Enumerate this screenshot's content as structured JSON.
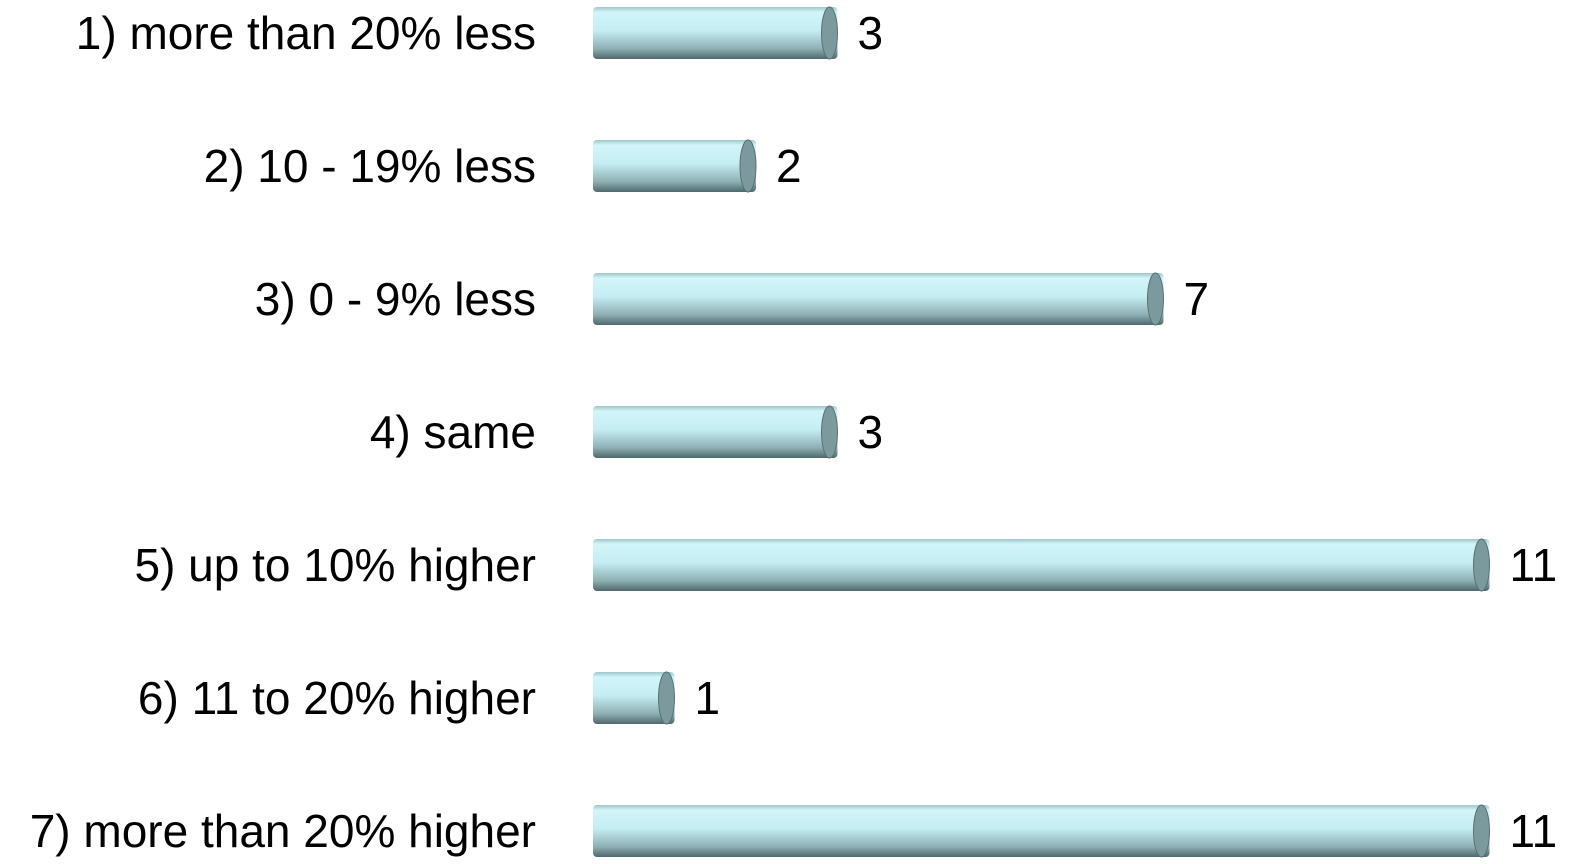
{
  "chart_data": {
    "type": "bar",
    "orientation": "horizontal",
    "categories": [
      "1) more than 20% less",
      "2) 10 - 19% less",
      "3) 0 - 9% less",
      "4) same",
      "5) up to 10% higher",
      "6) 11 to 20% higher",
      "7) more than 20% higher"
    ],
    "values": [
      3,
      2,
      7,
      3,
      11,
      1,
      11
    ],
    "value_labels": [
      "3",
      "2",
      "7",
      "3",
      "11",
      "1",
      "11"
    ],
    "title": "",
    "xlabel": "",
    "ylabel": "",
    "xlim": [
      0,
      11
    ],
    "grid": false,
    "legend": "none",
    "style": "cylinder"
  },
  "colors": {
    "bar_light": "#d2f5f9",
    "bar_mid": "#aedce2",
    "bar_dark": "#577173",
    "bar_cap": "#7c9a9e",
    "text": "#000000"
  }
}
